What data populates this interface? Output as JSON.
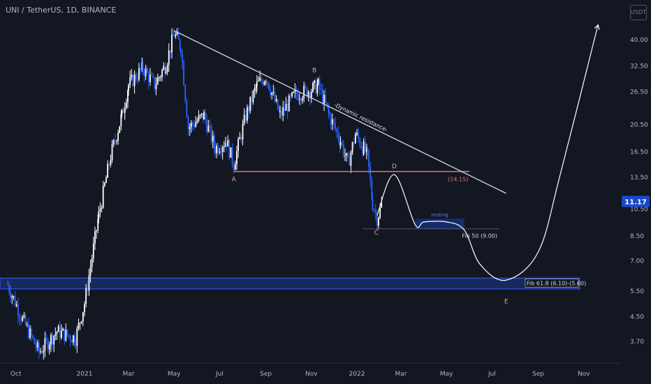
{
  "header": {
    "symbol_title": "UNI / TetherUS, 1D, BINANCE",
    "currency_badge": "USDT"
  },
  "colors": {
    "background": "#131722",
    "candle_up": "#ffffff",
    "candle_down": "#2962ff",
    "trendline": "#d1d4dc",
    "support_line": "#e57373",
    "fib_zone": "#1e3a8a",
    "price_badge": "#1848cc",
    "axis_text": "#b2b5be"
  },
  "chart_data": {
    "type": "candlestick",
    "title": "UNI / TetherUS, 1D, BINANCE",
    "y_scale": "log",
    "y_tick_labels": [
      "40.00",
      "32.50",
      "26.50",
      "20.50",
      "16.50",
      "13.50",
      "10.50",
      "8.50",
      "7.00",
      "5.50",
      "4.50",
      "3.70"
    ],
    "y_ticks": [
      40.0,
      32.5,
      26.5,
      20.5,
      16.5,
      13.5,
      10.5,
      8.5,
      7.0,
      5.5,
      4.5,
      3.7
    ],
    "x_tick_labels": [
      "Oct",
      "2021",
      "Mar",
      "May",
      "Jul",
      "Sep",
      "Nov",
      "2022",
      "Mar",
      "May",
      "Jul",
      "Sep",
      "Nov"
    ],
    "x_ticks": [
      "2020-10-01",
      "2021-01-01",
      "2021-03-01",
      "2021-05-01",
      "2021-07-01",
      "2021-09-01",
      "2021-11-01",
      "2022-01-01",
      "2022-03-01",
      "2022-05-01",
      "2022-07-01",
      "2022-09-01",
      "2022-11-01"
    ],
    "current_price": "11.17",
    "price_path": [
      {
        "date": "2020-09-20",
        "price": 5.8
      },
      {
        "date": "2020-10-10",
        "price": 4.4
      },
      {
        "date": "2020-11-01",
        "price": 3.4
      },
      {
        "date": "2020-11-25",
        "price": 4.0
      },
      {
        "date": "2020-12-20",
        "price": 3.8
      },
      {
        "date": "2021-01-01",
        "price": 5.0
      },
      {
        "date": "2021-01-20",
        "price": 10.0
      },
      {
        "date": "2021-02-05",
        "price": 16.0
      },
      {
        "date": "2021-02-20",
        "price": 22.0
      },
      {
        "date": "2021-03-01",
        "price": 28.0
      },
      {
        "date": "2021-03-20",
        "price": 32.0
      },
      {
        "date": "2021-04-05",
        "price": 28.0
      },
      {
        "date": "2021-04-20",
        "price": 33.0
      },
      {
        "date": "2021-05-01",
        "price": 42.0
      },
      {
        "date": "2021-05-10",
        "price": 38.0
      },
      {
        "date": "2021-05-20",
        "price": 20.0
      },
      {
        "date": "2021-06-10",
        "price": 22.0
      },
      {
        "date": "2021-06-25",
        "price": 17.0
      },
      {
        "date": "2021-07-10",
        "price": 18.0
      },
      {
        "date": "2021-07-20",
        "price": 15.0
      },
      {
        "date": "2021-08-05",
        "price": 22.0
      },
      {
        "date": "2021-08-20",
        "price": 28.0
      },
      {
        "date": "2021-09-01",
        "price": 30.0
      },
      {
        "date": "2021-09-20",
        "price": 22.0
      },
      {
        "date": "2021-10-10",
        "price": 26.0
      },
      {
        "date": "2021-11-01",
        "price": 27.0
      },
      {
        "date": "2021-11-10",
        "price": 28.0
      },
      {
        "date": "2021-11-25",
        "price": 22.0
      },
      {
        "date": "2021-12-10",
        "price": 18.0
      },
      {
        "date": "2021-12-20",
        "price": 15.0
      },
      {
        "date": "2021-12-30",
        "price": 19.0
      },
      {
        "date": "2022-01-10",
        "price": 17.0
      },
      {
        "date": "2022-01-15",
        "price": 16.0
      },
      {
        "date": "2022-01-22",
        "price": 11.0
      },
      {
        "date": "2022-01-28",
        "price": 9.8
      },
      {
        "date": "2022-02-05",
        "price": 11.17
      }
    ],
    "annotations": {
      "trendline_label": "-Dynamic resistance-",
      "trendline": {
        "from": {
          "date": "2021-05-01",
          "price": 43.0
        },
        "to": {
          "date": "2022-07-20",
          "price": 11.9
        }
      },
      "support": {
        "from_date": "2021-07-20",
        "to_date": "2022-06-01",
        "price": 14.15,
        "label": "(14.15)"
      },
      "fib50": {
        "from_date": "2022-01-10",
        "to_date": "2022-07-10",
        "price": 9.0,
        "label": "Fib 50 (9.00)"
      },
      "fib618": {
        "label": "Fib 61.8 (6.10)-(5.60)",
        "high": 6.1,
        "low": 5.6
      },
      "resting_label": "resting",
      "resting_box": {
        "from_date": "2022-03-20",
        "to_date": "2022-05-25",
        "high": 9.75,
        "low": 9.0
      },
      "wave_labels": [
        {
          "text": "A",
          "date": "2021-07-20",
          "price": 13.1
        },
        {
          "text": "B",
          "date": "2021-11-05",
          "price": 31.0
        },
        {
          "text": "C",
          "date": "2022-01-27",
          "price": 8.6
        },
        {
          "text": "D",
          "date": "2022-02-20",
          "price": 14.5
        },
        {
          "text": "E",
          "date": "2022-07-20",
          "price": 5.0
        }
      ],
      "projection_path": [
        {
          "date": "2022-01-28",
          "price": 10.0
        },
        {
          "date": "2022-02-20",
          "price": 13.8
        },
        {
          "date": "2022-03-20",
          "price": 9.3
        },
        {
          "date": "2022-04-01",
          "price": 9.5
        },
        {
          "date": "2022-05-01",
          "price": 9.5
        },
        {
          "date": "2022-05-25",
          "price": 8.9
        },
        {
          "date": "2022-06-15",
          "price": 6.8
        },
        {
          "date": "2022-07-20",
          "price": 6.0
        },
        {
          "date": "2022-09-01",
          "price": 7.5
        },
        {
          "date": "2022-10-01",
          "price": 14.0
        },
        {
          "date": "2022-11-20",
          "price": 45.0
        }
      ]
    }
  }
}
